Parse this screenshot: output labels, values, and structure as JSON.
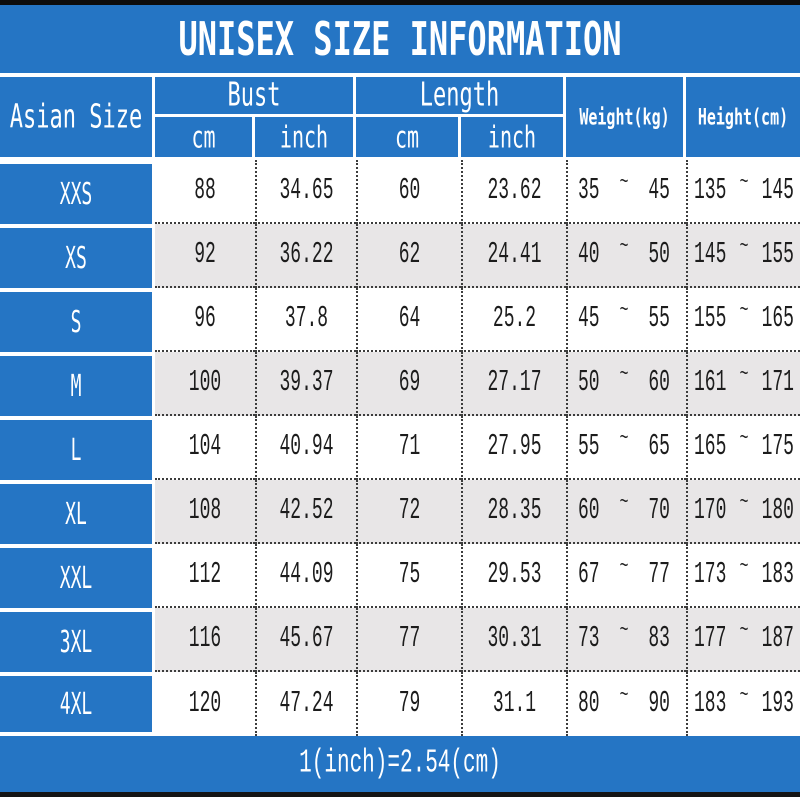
{
  "colors": {
    "blue": "#2575c4",
    "row_white": "#ffffff",
    "row_gray": "#e8e6e7",
    "bar_black": "#0d0d0d",
    "text_dark": "#1c1c1c",
    "text_white": "#ffffff"
  },
  "chart_data": {
    "type": "table",
    "title": "UNISEX SIZE INFORMATION",
    "footer_note": "1(inch)=2.54(cm)",
    "header": {
      "size_col": "Asian Size",
      "bust": "Bust",
      "length": "Length",
      "weight": "Weight(kg)",
      "height": "Height(cm)",
      "unit_cm": "cm",
      "unit_inch": "inch",
      "range_separator": "~"
    },
    "columns": [
      "Asian Size",
      "Bust cm",
      "Bust inch",
      "Length cm",
      "Length inch",
      "Weight(kg)",
      "Height(cm)"
    ],
    "rows": [
      {
        "size": "XXS",
        "bust_cm": "88",
        "bust_inch": "34.65",
        "length_cm": "60",
        "length_inch": "23.62",
        "weight": [
          "35",
          "45"
        ],
        "height": [
          "135",
          "145"
        ]
      },
      {
        "size": "XS",
        "bust_cm": "92",
        "bust_inch": "36.22",
        "length_cm": "62",
        "length_inch": "24.41",
        "weight": [
          "40",
          "50"
        ],
        "height": [
          "145",
          "155"
        ]
      },
      {
        "size": "S",
        "bust_cm": "96",
        "bust_inch": "37.8",
        "length_cm": "64",
        "length_inch": "25.2",
        "weight": [
          "45",
          "55"
        ],
        "height": [
          "155",
          "165"
        ]
      },
      {
        "size": "M",
        "bust_cm": "100",
        "bust_inch": "39.37",
        "length_cm": "69",
        "length_inch": "27.17",
        "weight": [
          "50",
          "60"
        ],
        "height": [
          "161",
          "171"
        ]
      },
      {
        "size": "L",
        "bust_cm": "104",
        "bust_inch": "40.94",
        "length_cm": "71",
        "length_inch": "27.95",
        "weight": [
          "55",
          "65"
        ],
        "height": [
          "165",
          "175"
        ]
      },
      {
        "size": "XL",
        "bust_cm": "108",
        "bust_inch": "42.52",
        "length_cm": "72",
        "length_inch": "28.35",
        "weight": [
          "60",
          "70"
        ],
        "height": [
          "170",
          "180"
        ]
      },
      {
        "size": "XXL",
        "bust_cm": "112",
        "bust_inch": "44.09",
        "length_cm": "75",
        "length_inch": "29.53",
        "weight": [
          "67",
          "77"
        ],
        "height": [
          "173",
          "183"
        ]
      },
      {
        "size": "3XL",
        "bust_cm": "116",
        "bust_inch": "45.67",
        "length_cm": "77",
        "length_inch": "30.31",
        "weight": [
          "73",
          "83"
        ],
        "height": [
          "177",
          "187"
        ]
      },
      {
        "size": "4XL",
        "bust_cm": "120",
        "bust_inch": "47.24",
        "length_cm": "79",
        "length_inch": "31.1",
        "weight": [
          "80",
          "90"
        ],
        "height": [
          "183",
          "193"
        ]
      }
    ]
  }
}
